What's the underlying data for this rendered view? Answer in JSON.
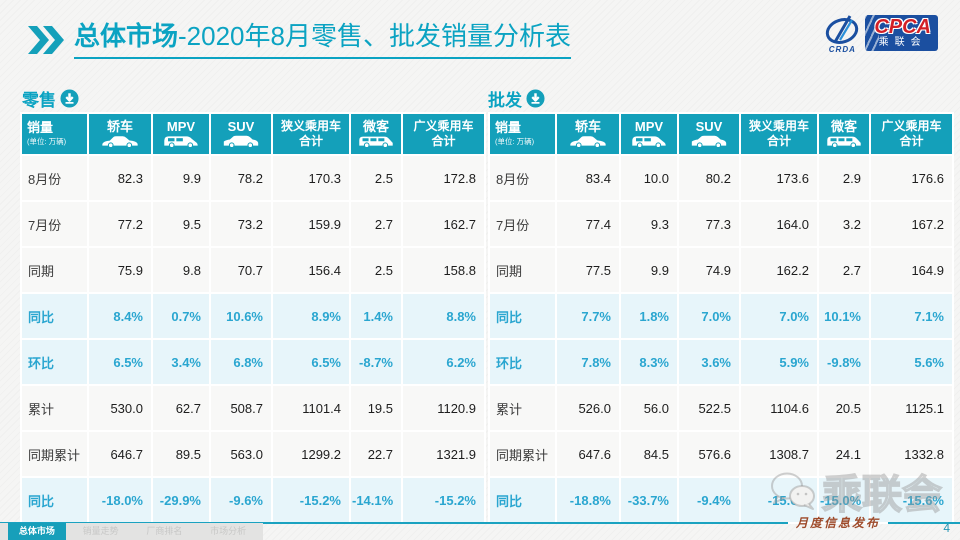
{
  "title": {
    "bold": "总体市场",
    "rest": "-2020年8月零售、批发销量分析表"
  },
  "logo": {
    "cpca": "CPCA",
    "crda": "CRDA",
    "org": "乘联会"
  },
  "table_columns": {
    "sales_label": "销量",
    "sales_unit": "(单位: 万辆)",
    "columns": [
      {
        "label": "轿车",
        "icon": "sedan-icon"
      },
      {
        "label": "MPV",
        "icon": "mpv-icon"
      },
      {
        "label": "SUV",
        "icon": "suv-icon"
      },
      {
        "label": "狭义乘用车",
        "label2": "合计",
        "icon": null
      },
      {
        "label": "微客",
        "icon": "microvan-icon"
      },
      {
        "label": "广义乘用车",
        "label2": "合计",
        "icon": null
      }
    ]
  },
  "retail": {
    "section_label": "零售",
    "rows": [
      {
        "label": "8月份",
        "type": "normal",
        "values": [
          "82.3",
          "9.9",
          "78.2",
          "170.3",
          "2.5",
          "172.8"
        ]
      },
      {
        "label": "7月份",
        "type": "normal",
        "values": [
          "77.2",
          "9.5",
          "73.2",
          "159.9",
          "2.7",
          "162.7"
        ]
      },
      {
        "label": "同期",
        "type": "normal",
        "values": [
          "75.9",
          "9.8",
          "70.7",
          "156.4",
          "2.5",
          "158.8"
        ]
      },
      {
        "label": "同比",
        "type": "percent",
        "values": [
          "8.4%",
          "0.7%",
          "10.6%",
          "8.9%",
          "1.4%",
          "8.8%"
        ]
      },
      {
        "label": "环比",
        "type": "percent",
        "values": [
          "6.5%",
          "3.4%",
          "6.8%",
          "6.5%",
          "-8.7%",
          "6.2%"
        ]
      },
      {
        "label": "累计",
        "type": "normal",
        "values": [
          "530.0",
          "62.7",
          "508.7",
          "1101.4",
          "19.5",
          "1120.9"
        ]
      },
      {
        "label": "同期累计",
        "type": "normal",
        "values": [
          "646.7",
          "89.5",
          "563.0",
          "1299.2",
          "22.7",
          "1321.9"
        ]
      },
      {
        "label": "同比",
        "type": "percent",
        "values": [
          "-18.0%",
          "-29.9%",
          "-9.6%",
          "-15.2%",
          "-14.1%",
          "-15.2%"
        ]
      }
    ]
  },
  "wholesale": {
    "section_label": "批发",
    "rows": [
      {
        "label": "8月份",
        "type": "normal",
        "values": [
          "83.4",
          "10.0",
          "80.2",
          "173.6",
          "2.9",
          "176.6"
        ]
      },
      {
        "label": "7月份",
        "type": "normal",
        "values": [
          "77.4",
          "9.3",
          "77.3",
          "164.0",
          "3.2",
          "167.2"
        ]
      },
      {
        "label": "同期",
        "type": "normal",
        "values": [
          "77.5",
          "9.9",
          "74.9",
          "162.2",
          "2.7",
          "164.9"
        ]
      },
      {
        "label": "同比",
        "type": "percent",
        "values": [
          "7.7%",
          "1.8%",
          "7.0%",
          "7.0%",
          "10.1%",
          "7.1%"
        ]
      },
      {
        "label": "环比",
        "type": "percent",
        "values": [
          "7.8%",
          "8.3%",
          "3.6%",
          "5.9%",
          "-9.8%",
          "5.6%"
        ]
      },
      {
        "label": "累计",
        "type": "normal",
        "values": [
          "526.0",
          "56.0",
          "522.5",
          "1104.6",
          "20.5",
          "1125.1"
        ]
      },
      {
        "label": "同期累计",
        "type": "normal",
        "values": [
          "647.6",
          "84.5",
          "576.6",
          "1308.7",
          "24.1",
          "1332.8"
        ]
      },
      {
        "label": "同比",
        "type": "percent",
        "values": [
          "-18.8%",
          "-33.7%",
          "-9.4%",
          "-15.6%",
          "-15.0%",
          "-15.6%"
        ]
      }
    ]
  },
  "watermarks": {
    "diagonal": "CPCA乘联会",
    "wechat_text": "乘联会"
  },
  "footer": {
    "tabs": [
      {
        "label": "总体市场",
        "active": true
      },
      {
        "label": "销量走势",
        "active": false
      },
      {
        "label": "厂商排名",
        "active": false
      },
      {
        "label": "市场分析",
        "active": false
      }
    ],
    "release_label": "月度信息发布",
    "page_number": "4"
  },
  "colors": {
    "teal": "#14a0ba",
    "percent_text": "#2aa6d0",
    "release_red": "#9e4a2a",
    "logo_blue": "#1b4fa0",
    "logo_red": "#d21f26"
  }
}
